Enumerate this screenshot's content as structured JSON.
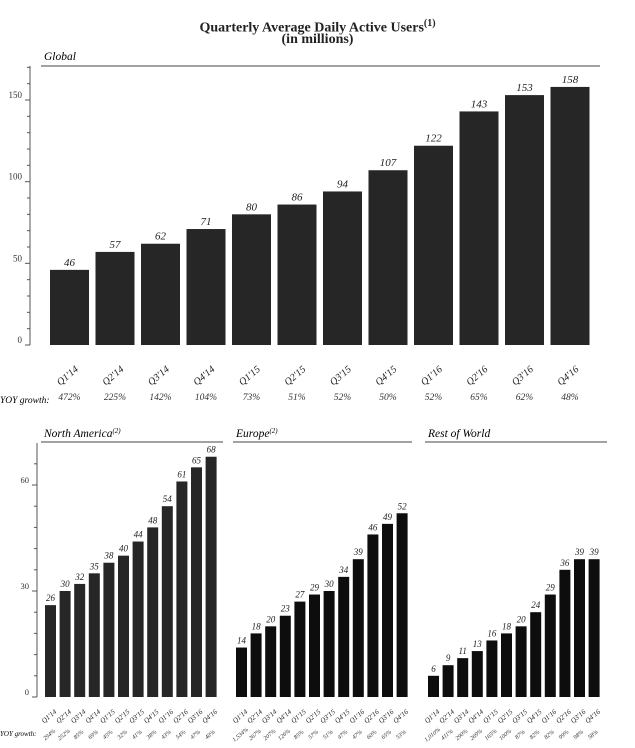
{
  "header": {
    "title": "Quarterly Average Daily Active Users",
    "title_note": "(1)",
    "subtitle": "(in millions)"
  },
  "yoy_label": "YOY growth:",
  "colors": {
    "bar": "#262626",
    "bar_small": "#0d0d0d",
    "axis": "#555555",
    "text": "#222222"
  },
  "chart_data": [
    {
      "type": "bar",
      "title": "Global",
      "title_note": "",
      "categories": [
        "Q1'14",
        "Q2'14",
        "Q3'14",
        "Q4'14",
        "Q1'15",
        "Q2'15",
        "Q3'15",
        "Q4'15",
        "Q1'16",
        "Q2'16",
        "Q3'16",
        "Q4'16"
      ],
      "values": [
        46,
        57,
        62,
        71,
        80,
        86,
        94,
        107,
        122,
        143,
        153,
        158
      ],
      "yoy_growth": [
        "472%",
        "225%",
        "142%",
        "104%",
        "73%",
        "51%",
        "52%",
        "50%",
        "52%",
        "65%",
        "62%",
        "48%"
      ],
      "yticks": [
        0,
        50,
        100,
        150
      ],
      "ylim": [
        0,
        170
      ],
      "ylabel": "",
      "xlabel": ""
    },
    {
      "type": "bar",
      "title": "North America",
      "title_note": "(2)",
      "categories": [
        "Q1'14",
        "Q2'14",
        "Q3'14",
        "Q4'14",
        "Q1'15",
        "Q2'15",
        "Q3'15",
        "Q4'15",
        "Q1'16",
        "Q2'16",
        "Q3'16",
        "Q4'16"
      ],
      "values": [
        26,
        30,
        32,
        35,
        38,
        40,
        44,
        48,
        54,
        61,
        65,
        68
      ],
      "yoy_growth": [
        "294%",
        "252%",
        "85%",
        "69%",
        "45%",
        "32%",
        "41%",
        "38%",
        "43%",
        "54%",
        "47%",
        "40%"
      ],
      "yticks": [
        0,
        30,
        60
      ],
      "ylim": [
        0,
        72
      ]
    },
    {
      "type": "bar",
      "title": "Europe",
      "title_note": "(2)",
      "categories": [
        "Q1'14",
        "Q2'14",
        "Q3'14",
        "Q4'14",
        "Q1'15",
        "Q2'15",
        "Q3'15",
        "Q4'15",
        "Q1'16",
        "Q2'16",
        "Q3'16",
        "Q4'16"
      ],
      "values": [
        14,
        18,
        20,
        23,
        27,
        29,
        30,
        34,
        39,
        46,
        49,
        52
      ],
      "yoy_growth": [
        "1,534%",
        "267%",
        "207%",
        "126%",
        "85%",
        "57%",
        "51%",
        "47%",
        "47%",
        "60%",
        "65%",
        "53%"
      ],
      "yticks": [],
      "ylim": [
        0,
        72
      ]
    },
    {
      "type": "bar",
      "title": "Rest of World",
      "title_note": "",
      "categories": [
        "Q1'14",
        "Q2'14",
        "Q3'14",
        "Q4'14",
        "Q1'15",
        "Q2'15",
        "Q3'15",
        "Q4'15",
        "Q1'16",
        "Q2'16",
        "Q3'16",
        "Q4'16"
      ],
      "values": [
        6,
        9,
        11,
        13,
        16,
        18,
        20,
        24,
        29,
        36,
        39,
        39
      ],
      "yoy_growth": [
        "1,010%",
        "411%",
        "290%",
        "269%",
        "165%",
        "100%",
        "87%",
        "82%",
        "82%",
        "99%",
        "98%",
        "58%"
      ],
      "yticks": [],
      "ylim": [
        0,
        72
      ]
    }
  ]
}
